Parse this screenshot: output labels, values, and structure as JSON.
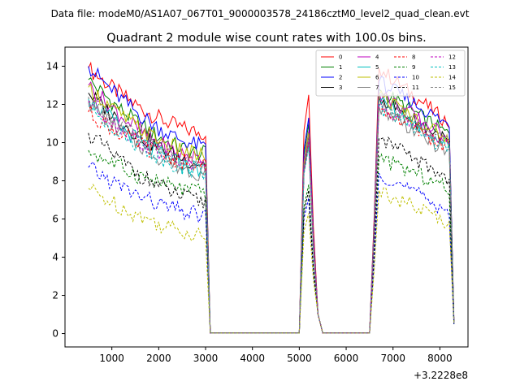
{
  "header": {
    "data_file": "Data file: modeM0/AS1A07_067T01_9000003578_24186cztM0_level2_quad_clean.evt"
  },
  "chart_data": {
    "type": "line",
    "title": "Quadrant 2 module wise count rates with 100.0s bins.",
    "xlabel": "",
    "ylabel": "",
    "x_offset_label": "+3.2228e8",
    "xlim": [
      0,
      8600
    ],
    "ylim": [
      -0.7,
      15
    ],
    "x_ticks": [
      1000,
      2000,
      3000,
      4000,
      5000,
      6000,
      7000,
      8000
    ],
    "x_tick_labels": [
      "1000",
      "2000",
      "3000",
      "4000",
      "5000",
      "6000",
      "7000",
      "8000"
    ],
    "y_ticks": [
      0,
      2,
      4,
      6,
      8,
      10,
      12,
      14
    ],
    "y_tick_labels": [
      "0",
      "2",
      "4",
      "6",
      "8",
      "10",
      "12",
      "14"
    ],
    "legend_position": "top-right",
    "segments": {
      "seg1": [
        500,
        3000
      ],
      "gap1": [
        3100,
        5000
      ],
      "seg2": [
        5100,
        5300
      ],
      "gap2": [
        5500,
        6500
      ],
      "seg3": [
        6600,
        8200
      ],
      "tail_x": 8300
    },
    "series": [
      {
        "name": "0",
        "color": "#ff0000",
        "dash": "solid",
        "seg1_start": 13.9,
        "seg1_end": 10.5,
        "peak2": 12.5,
        "seg3_start": 13.9,
        "seg3_end": 11.0,
        "tail": 0.7
      },
      {
        "name": "1",
        "color": "#008000",
        "dash": "solid",
        "seg1_start": 13.3,
        "seg1_end": 9.4,
        "peak2": 11.0,
        "seg3_start": 12.8,
        "seg3_end": 10.4,
        "tail": 0.6
      },
      {
        "name": "2",
        "color": "#0000ff",
        "dash": "solid",
        "seg1_start": 14.0,
        "seg1_end": 9.8,
        "peak2": 11.3,
        "seg3_start": 13.2,
        "seg3_end": 10.9,
        "tail": 0.7
      },
      {
        "name": "3",
        "color": "#000000",
        "dash": "solid",
        "seg1_start": 12.6,
        "seg1_end": 8.9,
        "peak2": 10.3,
        "seg3_start": 12.4,
        "seg3_end": 10.0,
        "tail": 0.6
      },
      {
        "name": "4",
        "color": "#bf00bf",
        "dash": "solid",
        "seg1_start": 13.0,
        "seg1_end": 9.1,
        "peak2": 10.6,
        "seg3_start": 12.6,
        "seg3_end": 10.2,
        "tail": 0.6
      },
      {
        "name": "5",
        "color": "#00bfbf",
        "dash": "solid",
        "seg1_start": 12.3,
        "seg1_end": 8.6,
        "peak2": 10.1,
        "seg3_start": 12.2,
        "seg3_end": 9.8,
        "tail": 0.6
      },
      {
        "name": "6",
        "color": "#bfbf00",
        "dash": "solid",
        "seg1_start": 12.9,
        "seg1_end": 9.3,
        "peak2": 10.5,
        "seg3_start": 12.5,
        "seg3_end": 10.1,
        "tail": 0.6
      },
      {
        "name": "7",
        "color": "#808080",
        "dash": "solid",
        "seg1_start": 12.1,
        "seg1_end": 8.4,
        "peak2": 9.9,
        "seg3_start": 11.9,
        "seg3_end": 9.4,
        "tail": 0.5
      },
      {
        "name": "8",
        "color": "#ff0000",
        "dash": "dashed",
        "seg1_start": 11.6,
        "seg1_end": 8.8,
        "peak2": 10.0,
        "seg3_start": 11.8,
        "seg3_end": 9.7,
        "tail": 0.6
      },
      {
        "name": "9",
        "color": "#008000",
        "dash": "dashed",
        "seg1_start": 9.6,
        "seg1_end": 7.4,
        "peak2": 7.8,
        "seg3_start": 9.2,
        "seg3_end": 7.6,
        "tail": 0.5
      },
      {
        "name": "10",
        "color": "#0000ff",
        "dash": "dashed",
        "seg1_start": 8.7,
        "seg1_end": 6.2,
        "peak2": 7.1,
        "seg3_start": 8.4,
        "seg3_end": 6.4,
        "tail": 0.5
      },
      {
        "name": "11",
        "color": "#000000",
        "dash": "dashed",
        "seg1_start": 10.5,
        "seg1_end": 6.9,
        "peak2": 7.5,
        "seg3_start": 10.2,
        "seg3_end": 8.1,
        "tail": 0.5
      },
      {
        "name": "12",
        "color": "#bf00bf",
        "dash": "dashed",
        "seg1_start": 12.2,
        "seg1_end": 8.7,
        "peak2": 10.2,
        "seg3_start": 12.0,
        "seg3_end": 9.9,
        "tail": 0.6
      },
      {
        "name": "13",
        "color": "#00bfbf",
        "dash": "dashed",
        "seg1_start": 11.9,
        "seg1_end": 8.5,
        "peak2": 9.8,
        "seg3_start": 11.9,
        "seg3_end": 9.6,
        "tail": 0.6
      },
      {
        "name": "14",
        "color": "#bfbf00",
        "dash": "dashed",
        "seg1_start": 7.6,
        "seg1_end": 5.2,
        "peak2": 6.3,
        "seg3_start": 7.5,
        "seg3_end": 5.8,
        "tail": 0.5
      },
      {
        "name": "15",
        "color": "#808080",
        "dash": "dashed",
        "seg1_start": 12.4,
        "seg1_end": 8.8,
        "peak2": 10.3,
        "seg3_start": 12.3,
        "seg3_end": 9.9,
        "tail": 0.6
      }
    ]
  }
}
